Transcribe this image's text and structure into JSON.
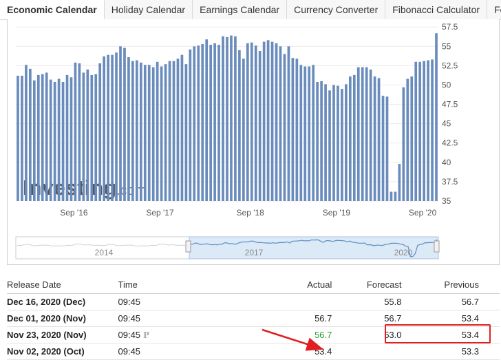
{
  "tabs": [
    "Economic Calendar",
    "Holiday Calendar",
    "Earnings Calendar",
    "Currency Converter",
    "Fibonacci Calculator",
    "Forex"
  ],
  "watermark": {
    "brand": "Investing",
    "suffix": ".com"
  },
  "chart_data": {
    "type": "bar",
    "x_tick_labels": [
      "Sep '16",
      "Sep '17",
      "Sep '18",
      "Sep '19",
      "Sep '20"
    ],
    "y_tick_labels": [
      "57.5",
      "55",
      "52.5",
      "50",
      "47.5",
      "45",
      "42.5",
      "40",
      "37.5",
      "35"
    ],
    "ylim": [
      35,
      58.5
    ],
    "values": [
      51.2,
      51.2,
      52.6,
      52.1,
      50.6,
      51.3,
      51.4,
      51.6,
      50.7,
      50.4,
      50.8,
      50.4,
      51.3,
      51.0,
      52.9,
      52.8,
      51.6,
      52.0,
      51.3,
      51.4,
      52.8,
      53.7,
      53.9,
      53.9,
      54.2,
      55.0,
      54.8,
      53.6,
      53.1,
      53.2,
      52.9,
      52.6,
      52.6,
      52.3,
      53.0,
      52.4,
      52.7,
      53.1,
      53.1,
      53.4,
      53.9,
      52.7,
      54.6,
      55.0,
      55.1,
      55.3,
      55.9,
      55.2,
      55.4,
      55.2,
      56.3,
      56.2,
      56.4,
      56.3,
      54.5,
      53.4,
      55.4,
      55.5,
      55.1,
      54.4,
      55.6,
      55.8,
      55.6,
      55.4,
      55.0,
      54.0,
      55.0,
      53.5,
      53.4,
      52.6,
      52.4,
      52.4,
      52.6,
      50.4,
      50.5,
      50.1,
      49.3,
      50.0,
      49.9,
      49.5,
      50.1,
      51.1,
      51.3,
      52.3,
      52.3,
      52.3,
      52.0,
      51.1,
      50.9,
      48.6,
      48.5,
      36.2,
      36.2,
      39.8,
      49.7,
      50.8,
      51.1,
      53.0,
      53.0,
      53.1,
      53.2,
      53.3,
      56.7
    ],
    "navigator_labels": [
      "2014",
      "2017",
      "2020"
    ]
  },
  "table": {
    "headers": {
      "release_date": "Release Date",
      "time": "Time",
      "actual": "Actual",
      "forecast": "Forecast",
      "previous": "Previous"
    },
    "rows": [
      {
        "date": "Dec 16, 2020 (Dec)",
        "time": "09:45",
        "flag": "",
        "actual": "",
        "forecast": "55.8",
        "previous": "56.7"
      },
      {
        "date": "Dec 01, 2020 (Nov)",
        "time": "09:45",
        "flag": "",
        "actual": "56.7",
        "forecast": "56.7",
        "previous": "53.4"
      },
      {
        "date": "Nov 23, 2020 (Nov)",
        "time": "09:45",
        "flag": "P",
        "actual": "56.7",
        "forecast": "53.0",
        "previous": "53.4"
      },
      {
        "date": "Nov 02, 2020 (Oct)",
        "time": "09:45",
        "flag": "",
        "actual": "53.4",
        "forecast": "",
        "previous": "53.3"
      }
    ]
  }
}
